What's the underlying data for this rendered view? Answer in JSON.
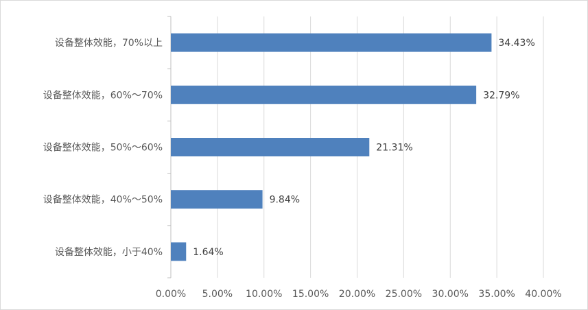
{
  "chart_data": {
    "type": "bar",
    "orientation": "horizontal",
    "categories": [
      "设备整体效能，70%以上",
      "设备整体效能，60%～70%",
      "设备整体效能，50%～60%",
      "设备整体效能，40%～50%",
      "设备整体效能，小于40%"
    ],
    "values": [
      34.43,
      32.79,
      21.31,
      9.84,
      1.64
    ],
    "value_labels": [
      "34.43%",
      "32.79%",
      "21.31%",
      "9.84%",
      "1.64%"
    ],
    "xlim": [
      0,
      40
    ],
    "x_ticks": [
      0,
      5,
      10,
      15,
      20,
      25,
      30,
      35,
      40
    ],
    "x_tick_labels": [
      "0.00%",
      "5.00%",
      "10.00%",
      "15.00%",
      "20.00%",
      "25.00%",
      "30.00%",
      "35.00%",
      "40.00%"
    ],
    "bar_color": "#4f81bd",
    "grid": true,
    "legend": "none"
  }
}
